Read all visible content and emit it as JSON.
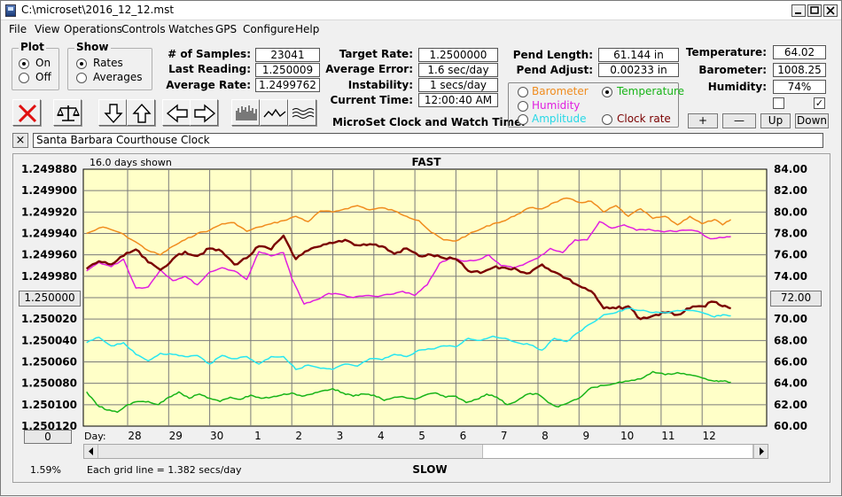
{
  "window": {
    "title": "C:\\microset\\2016_12_12.mst"
  },
  "menu": [
    "File",
    "View",
    "Operations",
    "Controls",
    "Watches",
    "GPS",
    "Configure",
    "Help"
  ],
  "plot_group": {
    "title": "Plot",
    "on": "On",
    "off": "Off",
    "selected": "On"
  },
  "show_group": {
    "title": "Show",
    "rates": "Rates",
    "averages": "Averages",
    "selected": "Rates"
  },
  "stats": [
    {
      "label": "# of Samples:",
      "value": "23041"
    },
    {
      "label": "Last Reading:",
      "value": "1.250009"
    },
    {
      "label": "Average Rate:",
      "value": "1.2499762"
    }
  ],
  "targets": [
    {
      "label": "Target Rate:",
      "value": "1.2500000"
    },
    {
      "label": "Average Error:",
      "value": "1.6 sec/day"
    },
    {
      "label": "Instability:",
      "value": "1 secs/day"
    },
    {
      "label": "Current Time:",
      "value": "12:00:40 AM"
    }
  ],
  "pend": [
    {
      "label": "Pend Length:",
      "value": "61.144 in"
    },
    {
      "label": "Pend Adjust:",
      "value": "0.00233 in"
    }
  ],
  "env": [
    {
      "label": "Temperature:",
      "value": "64.02"
    },
    {
      "label": "Barometer:",
      "value": "1008.25"
    },
    {
      "label": "Humidity:",
      "value": "74%"
    }
  ],
  "series_select": {
    "barometer": "Barometer",
    "temperature": "Temperature",
    "humidity": "Humidity",
    "amplitude": "Amplitude",
    "clock_rate": "Clock rate",
    "selected": "Temperature"
  },
  "adjust_buttons": {
    "plus": "+",
    "minus": "—",
    "up": "Up",
    "down": "Down"
  },
  "checkboxes": {
    "left_checked": false,
    "right_checked": true,
    "check_glyph": "✓"
  },
  "app_label": "MicroSet Clock and Watch Timer",
  "clock_name": "Santa Barbara Courthouse Clock",
  "close_glyph": "×",
  "toolbar_icons": [
    "stop-icon",
    "balance-icon",
    "arrow-down-icon",
    "arrow-up-icon",
    "arrow-left-icon",
    "arrow-right-icon",
    "bars-icon",
    "wave-icon",
    "multiwave-icon"
  ],
  "colors": {
    "plot_bg": "#ffffc8",
    "barometer": "#f08c1e",
    "temperature": "#18b418",
    "humidity": "#e01ee0",
    "amplitude": "#28e6f0",
    "clock_rate": "#7a0000"
  },
  "chart_data": {
    "type": "line",
    "header_left": "16.0 days shown",
    "header_center": "FAST",
    "footer_center": "SLOW",
    "footer_left": "Each grid line = 1.382 secs/day",
    "bottom_left_value": "1.59%",
    "left_button_top": "1.250000",
    "left_button_bottom": "0",
    "right_button": "72.00",
    "x_prefix": "Day:",
    "x_ticks": [
      "28",
      "29",
      "30",
      "1",
      "2",
      "3",
      "4",
      "5",
      "6",
      "7",
      "8",
      "9",
      "10",
      "11",
      "12"
    ],
    "y_left_ticks": [
      "1.249880",
      "1.249900",
      "1.249920",
      "1.249940",
      "1.249960",
      "1.249980",
      "1.250000",
      "1.250020",
      "1.250040",
      "1.250060",
      "1.250080",
      "1.250100",
      "1.250120"
    ],
    "y_right_ticks": [
      "84.00",
      "82.00",
      "80.00",
      "78.00",
      "76.00",
      "74.00",
      "72.00",
      "70.00",
      "68.00",
      "66.00",
      "64.00",
      "62.00",
      "60.00"
    ],
    "xlim": [
      27.0,
      12.9
    ],
    "ylim_right": [
      60,
      84
    ],
    "grid": true,
    "series": [
      {
        "key": "barometer",
        "x": [
          27.0,
          27.4,
          27.8,
          28.2,
          28.5,
          28.8,
          29.1,
          29.4,
          29.7,
          30.0,
          30.3,
          30.6,
          30.9,
          31.2,
          31.5,
          1.8,
          2.1,
          2.4,
          2.7,
          3.0,
          3.3,
          3.6,
          3.9,
          4.2,
          4.5,
          4.8,
          5.1,
          5.4,
          5.7,
          6.0,
          6.3,
          6.6,
          6.9,
          7.2,
          7.5,
          7.8,
          8.1,
          8.4,
          8.7,
          9.0,
          9.3,
          9.6,
          9.9,
          10.2,
          10.5,
          10.8,
          11.1,
          11.4,
          11.7,
          12.0,
          12.3,
          12.5,
          12.7
        ],
        "y": [
          78.0,
          78.6,
          78.1,
          77.2,
          76.4,
          76.0,
          76.8,
          77.4,
          78.0,
          78.3,
          78.9,
          79.0,
          78.2,
          78.6,
          78.9,
          79.2,
          79.6,
          79.1,
          80.1,
          80.0,
          80.3,
          80.6,
          80.2,
          80.4,
          80.1,
          79.6,
          79.2,
          78.1,
          77.4,
          77.3,
          77.9,
          78.4,
          78.9,
          79.2,
          79.8,
          80.4,
          80.3,
          80.9,
          81.3,
          80.9,
          81.0,
          80.0,
          80.6,
          79.6,
          80.3,
          79.4,
          79.6,
          78.8,
          79.6,
          78.9,
          79.3,
          78.8,
          79.3
        ]
      },
      {
        "key": "humidity",
        "x": [
          27.0,
          27.3,
          27.6,
          27.9,
          28.2,
          28.5,
          28.8,
          29.1,
          29.4,
          29.7,
          30.0,
          30.3,
          30.6,
          30.9,
          31.2,
          31.5,
          1.8,
          2.0,
          2.3,
          2.6,
          2.9,
          3.2,
          3.5,
          3.8,
          4.1,
          4.4,
          4.7,
          5.0,
          5.3,
          5.6,
          5.9,
          6.2,
          6.5,
          6.8,
          7.1,
          7.4,
          7.7,
          8.0,
          8.3,
          8.6,
          8.9,
          9.2,
          9.5,
          9.8,
          10.1,
          10.4,
          10.7,
          11.0,
          11.3,
          11.6,
          11.9,
          12.2,
          12.5,
          12.7
        ],
        "y": [
          74.5,
          75.3,
          74.9,
          75.6,
          72.9,
          73.0,
          74.6,
          73.6,
          74.0,
          73.2,
          74.4,
          74.8,
          74.5,
          73.7,
          76.3,
          75.9,
          76.2,
          73.8,
          71.4,
          71.8,
          72.4,
          72.3,
          72.0,
          72.2,
          72.1,
          72.3,
          72.6,
          72.2,
          73.2,
          75.2,
          75.7,
          75.4,
          75.5,
          76.0,
          75.0,
          74.8,
          75.2,
          75.7,
          76.6,
          76.2,
          77.4,
          77.4,
          79.1,
          78.5,
          78.8,
          78.3,
          78.4,
          78.2,
          78.2,
          78.3,
          78.2,
          77.5,
          77.6,
          77.7
        ]
      },
      {
        "key": "clock_rate",
        "x": [
          27.0,
          27.3,
          27.6,
          27.9,
          28.2,
          28.5,
          28.8,
          29.1,
          29.4,
          29.7,
          30.0,
          30.3,
          30.6,
          30.9,
          31.2,
          31.5,
          1.8,
          2.1,
          2.4,
          2.7,
          3.0,
          3.3,
          3.6,
          3.9,
          4.2,
          4.5,
          4.8,
          5.1,
          5.4,
          5.7,
          6.0,
          6.3,
          6.6,
          6.9,
          7.2,
          7.5,
          7.8,
          8.1,
          8.4,
          8.7,
          9.0,
          9.3,
          9.6,
          9.9,
          10.2,
          10.5,
          10.8,
          11.1,
          11.4,
          11.7,
          12.0,
          12.3,
          12.5,
          12.7
        ],
        "y": [
          74.7,
          75.4,
          75.1,
          75.9,
          76.5,
          75.3,
          74.6,
          75.6,
          76.3,
          75.9,
          76.6,
          76.3,
          75.1,
          75.7,
          76.8,
          76.5,
          77.8,
          75.6,
          76.4,
          76.8,
          77.1,
          77.4,
          76.9,
          77.0,
          76.8,
          76.1,
          76.6,
          75.9,
          76.0,
          75.7,
          75.6,
          74.5,
          74.3,
          74.8,
          74.8,
          74.6,
          74.3,
          75.1,
          74.4,
          73.8,
          73.1,
          72.6,
          71.0,
          71.0,
          71.2,
          70.0,
          70.3,
          70.6,
          70.4,
          71.0,
          71.2,
          71.6,
          71.2,
          71.0
        ]
      },
      {
        "key": "amplitude",
        "x": [
          27.0,
          27.3,
          27.6,
          27.9,
          28.2,
          28.5,
          28.8,
          29.1,
          29.4,
          29.7,
          30.0,
          30.3,
          30.6,
          30.9,
          31.2,
          31.5,
          1.8,
          2.1,
          2.4,
          2.7,
          3.0,
          3.3,
          3.6,
          3.9,
          4.2,
          4.5,
          4.8,
          5.1,
          5.4,
          5.7,
          6.0,
          6.3,
          6.6,
          6.9,
          7.2,
          7.5,
          7.8,
          8.1,
          8.4,
          8.7,
          9.0,
          9.3,
          9.6,
          9.9,
          10.2,
          10.5,
          10.8,
          11.1,
          11.4,
          11.7,
          12.0,
          12.3,
          12.5,
          12.7
        ],
        "y": [
          67.8,
          68.3,
          67.5,
          67.8,
          66.7,
          66.1,
          66.8,
          66.7,
          66.5,
          66.6,
          65.8,
          66.6,
          66.3,
          66.5,
          65.8,
          66.5,
          66.5,
          65.3,
          65.7,
          65.4,
          65.3,
          65.8,
          65.6,
          66.3,
          66.2,
          66.7,
          66.5,
          67.1,
          67.2,
          67.5,
          67.4,
          68.2,
          68.0,
          68.4,
          68.2,
          67.8,
          67.6,
          67.1,
          68.2,
          67.9,
          68.8,
          69.6,
          70.4,
          70.6,
          71.0,
          70.8,
          70.6,
          70.6,
          70.8,
          70.8,
          70.6,
          70.2,
          70.4,
          70.3
        ]
      },
      {
        "key": "temperature",
        "x": [
          27.0,
          27.25,
          27.5,
          27.75,
          28.0,
          28.25,
          28.5,
          28.75,
          29.0,
          29.25,
          29.5,
          29.75,
          30.0,
          30.25,
          30.5,
          30.75,
          31.0,
          31.25,
          31.5,
          1.75,
          2.0,
          2.25,
          2.5,
          2.75,
          3.0,
          3.25,
          3.5,
          3.75,
          4.0,
          4.25,
          4.5,
          4.75,
          5.0,
          5.25,
          5.5,
          5.75,
          6.0,
          6.25,
          6.5,
          6.75,
          7.0,
          7.25,
          7.5,
          7.75,
          8.0,
          8.25,
          8.5,
          8.75,
          9.0,
          9.3,
          9.6,
          9.9,
          10.2,
          10.5,
          10.8,
          11.1,
          11.4,
          11.7,
          12.0,
          12.3,
          12.5,
          12.7
        ],
        "y": [
          63.2,
          62.0,
          61.5,
          61.3,
          62.0,
          62.3,
          62.3,
          62.0,
          62.7,
          63.2,
          62.6,
          63.0,
          62.6,
          62.3,
          62.7,
          62.5,
          62.9,
          62.6,
          62.7,
          62.9,
          63.1,
          62.8,
          63.0,
          63.3,
          63.5,
          63.1,
          62.8,
          63.0,
          62.9,
          62.4,
          62.7,
          62.7,
          62.5,
          62.9,
          63.1,
          62.7,
          62.8,
          62.2,
          62.5,
          63.0,
          62.7,
          62.0,
          62.4,
          63.0,
          63.0,
          62.2,
          61.8,
          62.2,
          62.6,
          63.6,
          63.8,
          64.0,
          64.2,
          64.4,
          65.1,
          64.8,
          65.0,
          64.8,
          64.5,
          64.2,
          64.2,
          64.1
        ]
      }
    ]
  }
}
